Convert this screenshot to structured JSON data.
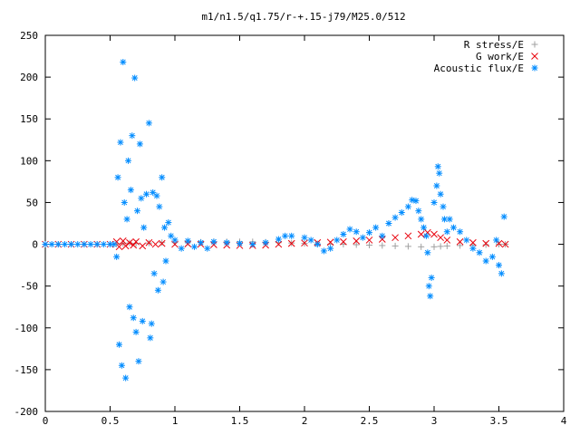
{
  "chart_data": {
    "type": "scatter",
    "title": "m1/n1.5/q1.75/r-+.15-j79/M25.0/512",
    "xlabel": "",
    "ylabel": "",
    "xlim": [
      0,
      4
    ],
    "ylim": [
      -200,
      250
    ],
    "x_ticks": [
      "0",
      "0.5",
      "1",
      "1.5",
      "2",
      "2.5",
      "3",
      "3.5",
      "4"
    ],
    "y_ticks": [
      "250",
      "200",
      "150",
      "100",
      "50",
      "0",
      "-50",
      "-100",
      "-150",
      "-200"
    ],
    "grid": false,
    "legend_position": "top-right",
    "series": [
      {
        "name": "R stress/E",
        "marker": "+",
        "color": "#a0a0a0",
        "points": [
          [
            0.0,
            0
          ],
          [
            0.1,
            0
          ],
          [
            0.2,
            0
          ],
          [
            0.3,
            0
          ],
          [
            0.4,
            0
          ],
          [
            0.5,
            0
          ],
          [
            0.55,
            0.5
          ],
          [
            0.6,
            1
          ],
          [
            0.65,
            1.5
          ],
          [
            0.7,
            1
          ],
          [
            0.8,
            1.5
          ],
          [
            0.9,
            2
          ],
          [
            1.0,
            2
          ],
          [
            1.1,
            2.5
          ],
          [
            1.2,
            2.5
          ],
          [
            1.3,
            3
          ],
          [
            1.4,
            3
          ],
          [
            1.5,
            3
          ],
          [
            1.6,
            3
          ],
          [
            1.7,
            2.5
          ],
          [
            1.8,
            2
          ],
          [
            1.9,
            1.5
          ],
          [
            2.0,
            1
          ],
          [
            2.1,
            0.5
          ],
          [
            2.2,
            0
          ],
          [
            2.3,
            0
          ],
          [
            2.4,
            -0.5
          ],
          [
            2.5,
            -1
          ],
          [
            2.6,
            -1.5
          ],
          [
            2.7,
            -2
          ],
          [
            2.8,
            -2.5
          ],
          [
            2.9,
            -3
          ],
          [
            3.0,
            -3
          ],
          [
            3.05,
            -2.5
          ],
          [
            3.1,
            -2
          ],
          [
            3.2,
            -1.5
          ],
          [
            3.3,
            -1
          ],
          [
            3.4,
            -0.5
          ],
          [
            3.5,
            0
          ],
          [
            3.55,
            0
          ]
        ]
      },
      {
        "name": "G work/E",
        "marker": "x",
        "color": "#e8000b",
        "points": [
          [
            0.0,
            0
          ],
          [
            0.1,
            0
          ],
          [
            0.2,
            0
          ],
          [
            0.3,
            0
          ],
          [
            0.4,
            0
          ],
          [
            0.5,
            0
          ],
          [
            0.55,
            3
          ],
          [
            0.57,
            -3
          ],
          [
            0.6,
            4
          ],
          [
            0.62,
            -2
          ],
          [
            0.65,
            2
          ],
          [
            0.68,
            -1
          ],
          [
            0.7,
            3
          ],
          [
            0.75,
            -2
          ],
          [
            0.8,
            2
          ],
          [
            0.85,
            0
          ],
          [
            0.9,
            1
          ],
          [
            1.0,
            0
          ],
          [
            1.1,
            0.5
          ],
          [
            1.2,
            0
          ],
          [
            1.3,
            -0.5
          ],
          [
            1.4,
            -1
          ],
          [
            1.5,
            -1.5
          ],
          [
            1.6,
            -1.5
          ],
          [
            1.7,
            -1
          ],
          [
            1.8,
            0
          ],
          [
            1.9,
            1
          ],
          [
            2.0,
            1.5
          ],
          [
            2.1,
            2
          ],
          [
            2.2,
            2.5
          ],
          [
            2.3,
            3
          ],
          [
            2.4,
            4
          ],
          [
            2.5,
            5
          ],
          [
            2.6,
            6
          ],
          [
            2.7,
            8
          ],
          [
            2.8,
            10
          ],
          [
            2.9,
            12
          ],
          [
            2.95,
            14
          ],
          [
            3.0,
            12
          ],
          [
            3.05,
            8
          ],
          [
            3.1,
            5
          ],
          [
            3.2,
            3
          ],
          [
            3.3,
            2
          ],
          [
            3.4,
            1
          ],
          [
            3.5,
            1
          ],
          [
            3.55,
            0
          ]
        ]
      },
      {
        "name": "Acoustic flux/E",
        "marker": "*",
        "color": "#008cff",
        "points": [
          [
            0.0,
            0
          ],
          [
            0.05,
            0
          ],
          [
            0.1,
            0
          ],
          [
            0.15,
            0
          ],
          [
            0.2,
            0
          ],
          [
            0.25,
            0
          ],
          [
            0.3,
            0
          ],
          [
            0.35,
            0
          ],
          [
            0.4,
            0
          ],
          [
            0.45,
            0
          ],
          [
            0.5,
            0
          ],
          [
            0.53,
            0
          ],
          [
            0.55,
            -15
          ],
          [
            0.56,
            80
          ],
          [
            0.57,
            -120
          ],
          [
            0.58,
            122
          ],
          [
            0.59,
            -145
          ],
          [
            0.6,
            218
          ],
          [
            0.61,
            50
          ],
          [
            0.62,
            -160
          ],
          [
            0.63,
            30
          ],
          [
            0.64,
            100
          ],
          [
            0.65,
            -75
          ],
          [
            0.66,
            65
          ],
          [
            0.67,
            130
          ],
          [
            0.68,
            -88
          ],
          [
            0.69,
            199
          ],
          [
            0.7,
            -105
          ],
          [
            0.71,
            40
          ],
          [
            0.72,
            -140
          ],
          [
            0.73,
            120
          ],
          [
            0.74,
            55
          ],
          [
            0.75,
            -92
          ],
          [
            0.76,
            20
          ],
          [
            0.78,
            60
          ],
          [
            0.8,
            145
          ],
          [
            0.81,
            -112
          ],
          [
            0.82,
            -95
          ],
          [
            0.83,
            62
          ],
          [
            0.84,
            -35
          ],
          [
            0.86,
            58
          ],
          [
            0.87,
            -55
          ],
          [
            0.88,
            45
          ],
          [
            0.9,
            80
          ],
          [
            0.91,
            -45
          ],
          [
            0.92,
            20
          ],
          [
            0.93,
            -20
          ],
          [
            0.95,
            26
          ],
          [
            0.97,
            10
          ],
          [
            1.0,
            5
          ],
          [
            1.05,
            -5
          ],
          [
            1.1,
            4
          ],
          [
            1.15,
            -3
          ],
          [
            1.2,
            2
          ],
          [
            1.25,
            -5
          ],
          [
            1.3,
            3
          ],
          [
            1.4,
            2
          ],
          [
            1.5,
            1
          ],
          [
            1.6,
            0
          ],
          [
            1.7,
            2
          ],
          [
            1.8,
            6
          ],
          [
            1.85,
            10
          ],
          [
            1.9,
            10
          ],
          [
            2.0,
            8
          ],
          [
            2.05,
            5
          ],
          [
            2.1,
            0
          ],
          [
            2.15,
            -8
          ],
          [
            2.2,
            -5
          ],
          [
            2.25,
            5
          ],
          [
            2.3,
            12
          ],
          [
            2.35,
            18
          ],
          [
            2.4,
            15
          ],
          [
            2.45,
            8
          ],
          [
            2.5,
            14
          ],
          [
            2.55,
            20
          ],
          [
            2.6,
            10
          ],
          [
            2.65,
            25
          ],
          [
            2.7,
            32
          ],
          [
            2.75,
            38
          ],
          [
            2.8,
            45
          ],
          [
            2.83,
            53
          ],
          [
            2.86,
            52
          ],
          [
            2.88,
            40
          ],
          [
            2.9,
            30
          ],
          [
            2.92,
            20
          ],
          [
            2.94,
            10
          ],
          [
            2.95,
            -10
          ],
          [
            2.96,
            -50
          ],
          [
            2.97,
            -62
          ],
          [
            2.98,
            -40
          ],
          [
            3.0,
            50
          ],
          [
            3.02,
            70
          ],
          [
            3.03,
            93
          ],
          [
            3.04,
            85
          ],
          [
            3.05,
            60
          ],
          [
            3.07,
            45
          ],
          [
            3.08,
            30
          ],
          [
            3.1,
            15
          ],
          [
            3.12,
            30
          ],
          [
            3.15,
            20
          ],
          [
            3.2,
            15
          ],
          [
            3.25,
            5
          ],
          [
            3.3,
            -5
          ],
          [
            3.35,
            -10
          ],
          [
            3.4,
            -20
          ],
          [
            3.45,
            -15
          ],
          [
            3.48,
            5
          ],
          [
            3.5,
            -25
          ],
          [
            3.52,
            -35
          ],
          [
            3.54,
            33
          ]
        ]
      }
    ]
  }
}
